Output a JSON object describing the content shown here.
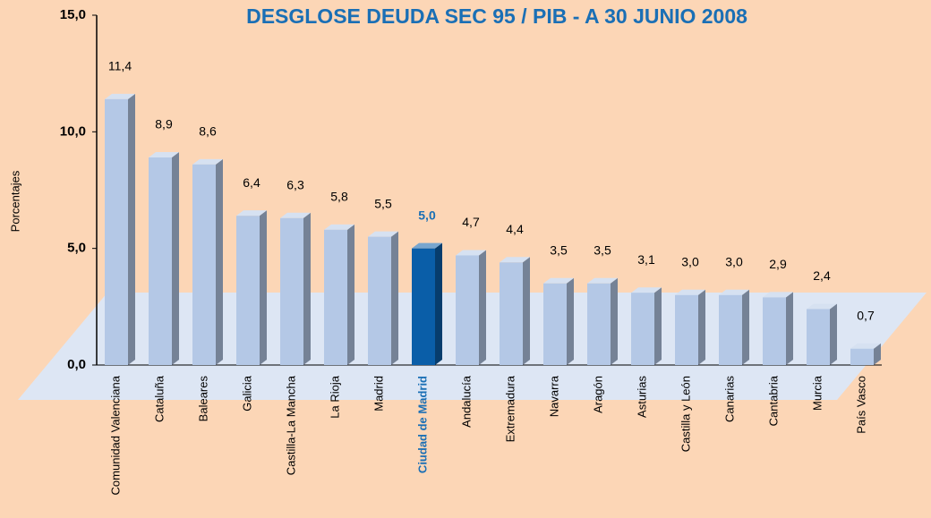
{
  "chart_data": {
    "type": "bar3d",
    "title": "DESGLOSE DEUDA SEC 95 / PIB - A 30 JUNIO 2008",
    "y_label": "Porcentajes",
    "categories": [
      "Comunidad Valenciana",
      "Cataluña",
      "Baleares",
      "Galicia",
      "Castilla-La Mancha",
      "La Rioja",
      "Madrid",
      "Ciudad de Madrid",
      "Andalucía",
      "Extremadura",
      "Navarra",
      "Aragón",
      "Asturias",
      "Castilla y León",
      "Canarias",
      "Cantabria",
      "Murcia",
      "País Vasco"
    ],
    "values": [
      11.4,
      8.9,
      8.6,
      6.4,
      6.3,
      5.8,
      5.5,
      5.0,
      4.7,
      4.4,
      3.5,
      3.5,
      3.1,
      3.0,
      3.0,
      2.9,
      2.4,
      0.7
    ],
    "value_labels": [
      "11,4",
      "8,9",
      "8,6",
      "6,4",
      "6,3",
      "5,8",
      "5,5",
      "5,0",
      "4,7",
      "4,4",
      "3,5",
      "3,5",
      "3,1",
      "3,0",
      "3,0",
      "2,9",
      "2,4",
      "0,7"
    ],
    "colors": [
      "#b4c8e6",
      "#b4c8e6",
      "#b4c8e6",
      "#b4c8e6",
      "#b4c8e6",
      "#b4c8e6",
      "#b4c8e6",
      "#0a5ea8",
      "#b4c8e6",
      "#b4c8e6",
      "#b4c8e6",
      "#b4c8e6",
      "#b4c8e6",
      "#b4c8e6",
      "#b4c8e6",
      "#b4c8e6",
      "#b4c8e6",
      "#b4c8e6"
    ],
    "label_colors": [
      "#000000",
      "#000000",
      "#000000",
      "#000000",
      "#000000",
      "#000000",
      "#000000",
      "#1a6fb5",
      "#000000",
      "#000000",
      "#000000",
      "#000000",
      "#000000",
      "#000000",
      "#000000",
      "#000000",
      "#000000",
      "#000000"
    ],
    "ylim": [
      0,
      15
    ],
    "yticks": [
      {
        "value": 0,
        "label": "0,0"
      },
      {
        "value": 5,
        "label": "5,0"
      },
      {
        "value": 10,
        "label": "10,0"
      },
      {
        "value": 15,
        "label": "15,0"
      }
    ]
  }
}
